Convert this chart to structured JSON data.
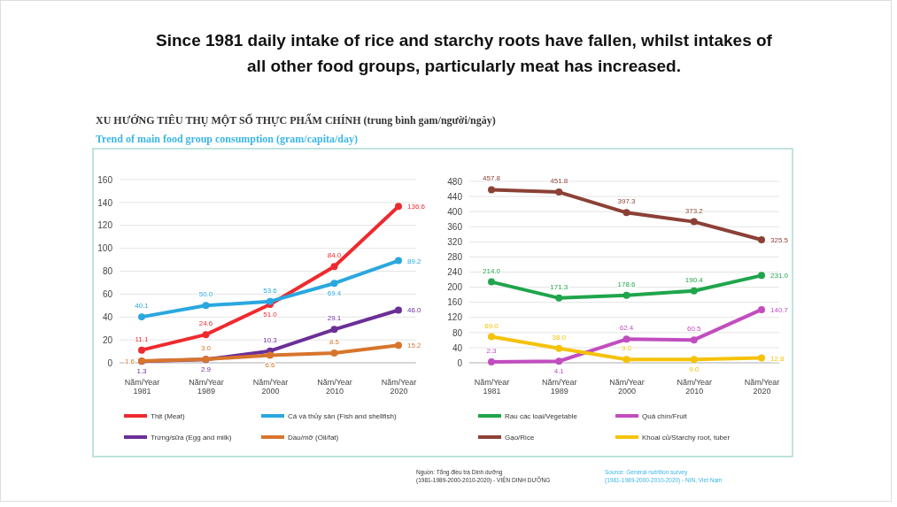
{
  "chart_data": [
    {
      "type": "line",
      "title": "Since 1981 daily intake of rice and starchy roots have fallen, whilst intakes of all other food groups, particularly meat has increased.",
      "subtitle": "XU HƯỚNG TIÊU THỤ MỘT SỐ THỰC PHẨM CHÍNH (trung bình gam/người/ngày)",
      "annotations": [
        "Trend of main food group consumption (gram/capita/day)"
      ],
      "categories": [
        "Năm/Year 1981",
        "Năm/Year 1989",
        "Năm/Year 2000",
        "Năm/Year 2010",
        "Năm/Year 2020"
      ],
      "series": [
        {
          "name": "Thịt (Meat)",
          "color": "#ee2a2e",
          "values": [
            11.1,
            24.6,
            51,
            84,
            136.6
          ],
          "value_labels": [
            "11.1",
            "24.6",
            "51.0",
            "84.0",
            "136.6"
          ]
        },
        {
          "name": "Cá và thủy sản (Fish and shellfish)",
          "color": "#2aa7df",
          "values": [
            40.1,
            50,
            53.6,
            69.4,
            89.2
          ],
          "value_labels": [
            "40.1",
            "50.0",
            "53.6",
            "69.4",
            "89.2"
          ]
        },
        {
          "name": "Trứng/sữa (Egg and milk)",
          "color": "#6b2f98",
          "values": [
            1.3,
            2.9,
            10.3,
            29.1,
            46
          ],
          "value_labels": [
            "1.3",
            "2.9",
            "10.3",
            "29.1",
            "46.0"
          ]
        },
        {
          "name": "Dầu/mỡ (Oil/fat)",
          "color": "#d8752c",
          "values": [
            1.6,
            3,
            6.6,
            8.5,
            15.2
          ],
          "value_labels": [
            "1.6",
            "3.0",
            "6.6",
            "8.5",
            "15.2"
          ]
        }
      ],
      "ylim": [
        0,
        160
      ],
      "yticks": [
        0,
        20,
        40,
        60,
        80,
        100,
        120,
        140,
        160
      ],
      "grid": "y",
      "legend": "bottom",
      "marker": "circle",
      "line_style": "solid"
    },
    {
      "type": "line",
      "categories": [
        "Năm/Year 1981",
        "Năm/Year 1989",
        "Năm/Year 2000",
        "Năm/Year 2010",
        "Năm/Year 2020"
      ],
      "series": [
        {
          "name": "Rau các loại/Vegetable",
          "color": "#1fa54b",
          "values": [
            214,
            171.3,
            178.6,
            190.4,
            231
          ],
          "value_labels": [
            "214.0",
            "171.3",
            "178.6",
            "190.4",
            "231.0"
          ]
        },
        {
          "name": "Quả chín/Fruit",
          "color": "#c24dbf",
          "values": [
            2.3,
            4.1,
            62.4,
            60.5,
            140.7
          ],
          "value_labels": [
            "2.3",
            "4.1",
            "62.4",
            "60.5",
            "140.7"
          ]
        },
        {
          "name": "Gạo/Rice",
          "color": "#8c4136",
          "values": [
            457.8,
            451.8,
            397.3,
            373.2,
            325.5
          ],
          "value_labels": [
            "457.8",
            "451.8",
            "397.3",
            "373.2",
            "325.5"
          ]
        },
        {
          "name": "Khoai củ/Starchy root, tuber",
          "color": "#f5c20a",
          "values": [
            69,
            38,
            9,
            9,
            12.8
          ],
          "value_labels": [
            "69.0",
            "38.0",
            "9.0",
            "9.0",
            "12.8"
          ]
        }
      ],
      "ylim": [
        0,
        480
      ],
      "yticks": [
        0,
        40,
        80,
        120,
        160,
        200,
        240,
        280,
        320,
        360,
        400,
        440,
        480
      ],
      "grid": "y",
      "legend": "bottom",
      "marker": "circle",
      "line_style": "solid",
      "annotations": [
        "Nguồn: Tổng điều tra Dinh dưỡng (1981-1989-2000-2010-2020) - VIỆN DINH DƯỠNG",
        "Source: General nutrition survey (1981-1989-2000-2010-2020) - NIN, Viet Nam"
      ]
    }
  ]
}
